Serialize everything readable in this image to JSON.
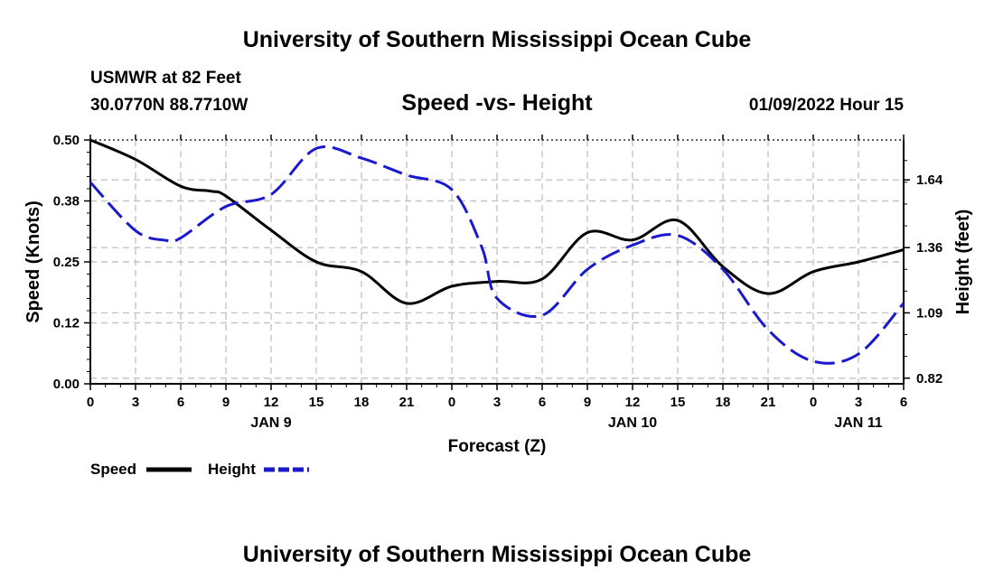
{
  "page": {
    "title_top": "University of Southern Mississippi Ocean Cube",
    "title_bottom": "University of Southern Mississippi Ocean Cube",
    "station_line": "USMWR at 82 Feet",
    "coords_line": "30.0770N  88.7710W",
    "datetime_line": "01/09/2022 Hour 15"
  },
  "chart_data": {
    "type": "line",
    "title": "Speed -vs- Height",
    "xlabel": "Forecast (Z)",
    "ylabel": "Speed (Knots)",
    "y2label": "Height (feet)",
    "x_range": [
      0,
      54
    ],
    "ylim": [
      0,
      0.5
    ],
    "y2lim": [
      0.7967,
      1.805
    ],
    "x_ticks": [
      0,
      3,
      6,
      9,
      12,
      15,
      18,
      21,
      24,
      27,
      30,
      33,
      36,
      39,
      42,
      45,
      48,
      51,
      54
    ],
    "x_tick_labels": [
      "0",
      "3",
      "6",
      "9",
      "12",
      "15",
      "18",
      "21",
      "0",
      "3",
      "6",
      "9",
      "12",
      "15",
      "18",
      "21",
      "0",
      "3",
      "6"
    ],
    "day_labels": [
      {
        "x": 12,
        "label": "JAN 9"
      },
      {
        "x": 36,
        "label": "JAN 10"
      },
      {
        "x": 51,
        "label": "JAN 11"
      }
    ],
    "y_tick_values": [
      0.0,
      0.125,
      0.25,
      0.375,
      0.5
    ],
    "y_tick_labels": [
      "0.00",
      "0.12",
      "0.25",
      "0.38",
      "0.50"
    ],
    "y2_tick_values": [
      0.82,
      1.09,
      1.36,
      1.64
    ],
    "y2_tick_labels": [
      "0.82",
      "1.09",
      "1.36",
      "1.64"
    ],
    "series": [
      {
        "name": "Speed",
        "axis": "left",
        "color": "#000000",
        "dash": "solid",
        "x": [
          0,
          3,
          6,
          8,
          9,
          12,
          15,
          18,
          21,
          24,
          27,
          30,
          33,
          36,
          39,
          42,
          45,
          48,
          51,
          54
        ],
        "values": [
          0.5,
          0.46,
          0.405,
          0.395,
          0.385,
          0.315,
          0.25,
          0.23,
          0.165,
          0.2,
          0.21,
          0.215,
          0.31,
          0.295,
          0.335,
          0.24,
          0.185,
          0.23,
          0.25,
          0.275
        ]
      },
      {
        "name": "Height",
        "axis": "right",
        "color": "#1a1acc",
        "dash": "dashed",
        "x": [
          0,
          3,
          5,
          6,
          9,
          12,
          15,
          18,
          21,
          24,
          26,
          27,
          30,
          33,
          36,
          39,
          42,
          45,
          48,
          51,
          54
        ],
        "values": [
          1.63,
          1.43,
          1.39,
          1.4,
          1.53,
          1.58,
          1.77,
          1.73,
          1.66,
          1.6,
          1.36,
          1.15,
          1.08,
          1.27,
          1.37,
          1.41,
          1.27,
          1.02,
          0.89,
          0.92,
          1.13
        ]
      }
    ],
    "legend": [
      {
        "label": "Speed",
        "color": "#000000",
        "dash": "solid"
      },
      {
        "label": "Height",
        "color": "#1a1acc",
        "dash": "dashed"
      }
    ]
  }
}
